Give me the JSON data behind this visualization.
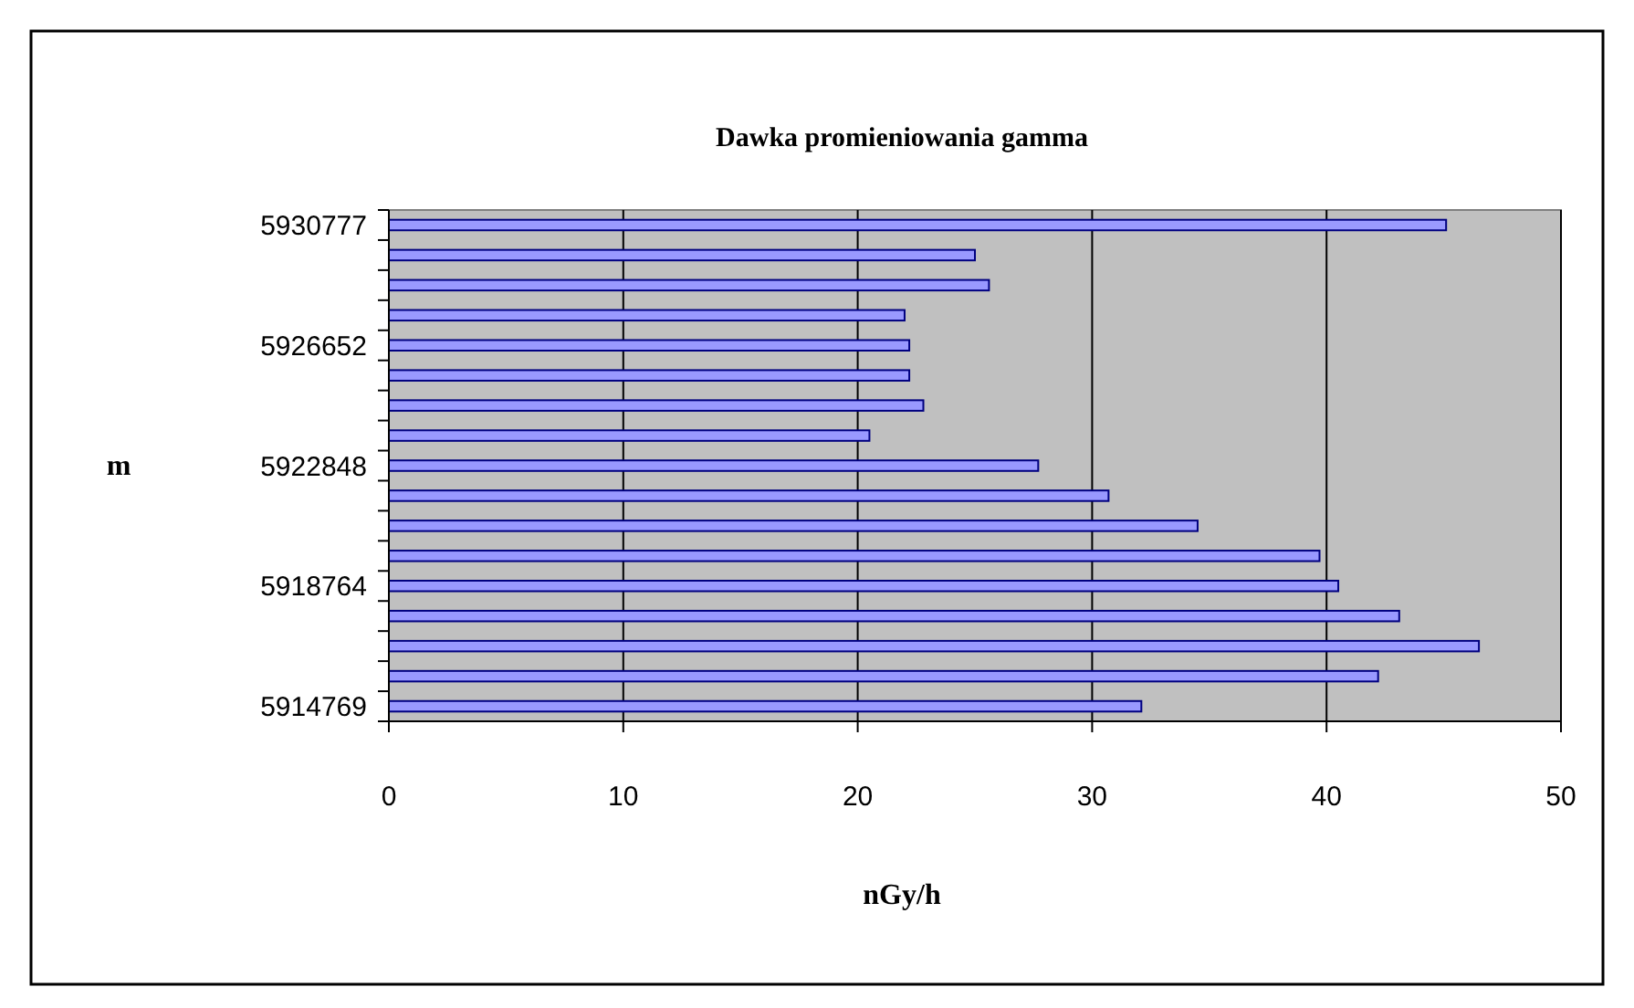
{
  "chart_data": {
    "type": "bar",
    "orientation": "horizontal",
    "title": "Dawka promieniowania gamma",
    "xlabel": "nGy/h",
    "ylabel": "m",
    "categories": [
      "5930777",
      null,
      null,
      null,
      "5926652",
      null,
      null,
      null,
      "5922848",
      null,
      null,
      null,
      "5918764",
      null,
      null,
      null,
      "5914769"
    ],
    "values": [
      45.1,
      25.0,
      25.6,
      22.0,
      22.2,
      22.2,
      22.8,
      20.5,
      27.7,
      30.7,
      34.5,
      39.7,
      40.5,
      43.1,
      46.5,
      42.2,
      32.1
    ],
    "color": "#9999ff",
    "xlim": [
      0,
      50
    ],
    "xticks": [
      0,
      10,
      20,
      30,
      40,
      50
    ],
    "grid": "x"
  }
}
